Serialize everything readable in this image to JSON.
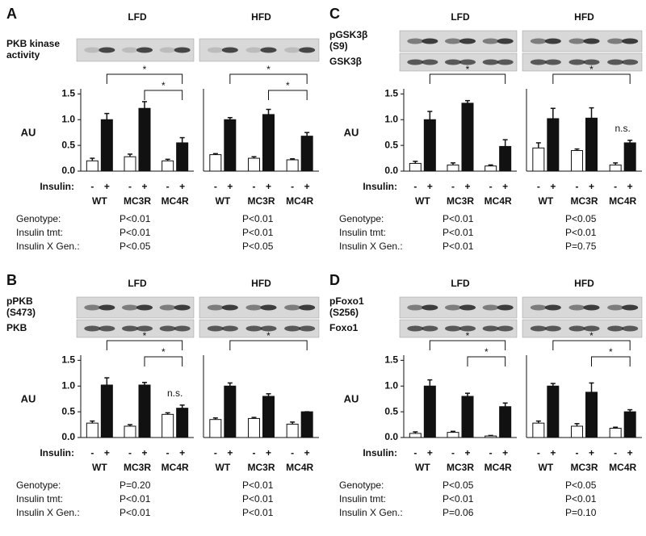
{
  "panels": [
    {
      "letter": "A",
      "ylabel": "AU",
      "insulin_label": "Insulin:",
      "stat_labels": [
        "Genotype:",
        "Insulin tmt:",
        "Insulin X Gen.:"
      ],
      "blots": [
        [
          "PKB kinase",
          "activity"
        ]
      ]
    },
    {
      "letter": "B",
      "ylabel": "AU",
      "insulin_label": "Insulin:",
      "stat_labels": [
        "Genotype:",
        "Insulin tmt:",
        "Insulin X Gen.:"
      ],
      "blots": [
        [
          "pPKB",
          "(S473)"
        ],
        [
          "PKB"
        ]
      ]
    },
    {
      "letter": "C",
      "ylabel": "AU",
      "insulin_label": "Insulin:",
      "stat_labels": [
        "Genotype:",
        "Insulin tmt:",
        "Insulin X Gen.:"
      ],
      "blots": [
        [
          "pGSK3β",
          "(S9)"
        ],
        [
          "GSK3β"
        ]
      ]
    },
    {
      "letter": "D",
      "ylabel": "AU",
      "insulin_label": "Insulin:",
      "stat_labels": [
        "Genotype:",
        "Insulin tmt:",
        "Insulin X Gen.:"
      ],
      "blots": [
        [
          "pFoxo1",
          "(S256)"
        ],
        [
          "Foxo1"
        ]
      ]
    }
  ],
  "chart_data": [
    {
      "type": "bar",
      "title": "LFD",
      "categories": [
        "WT",
        "MC3R",
        "MC4R"
      ],
      "series": [
        {
          "name": "-",
          "color": "#ffffff",
          "values": [
            0.2,
            0.28,
            0.2
          ],
          "errors": [
            0.05,
            0.05,
            0.03
          ]
        },
        {
          "name": "+",
          "color": "#111111",
          "values": [
            1.0,
            1.22,
            0.55
          ],
          "errors": [
            0.12,
            0.13,
            0.1
          ]
        }
      ],
      "ylim": [
        0,
        1.6
      ],
      "yticks": [
        {
          "value": 0,
          "label": "0.0"
        },
        {
          "value": 0.5,
          "label": "0.5"
        },
        {
          "value": 1,
          "label": "1.0"
        },
        {
          "value": 1.5,
          "label": "1.5"
        }
      ],
      "brackets": [
        {
          "label": "*",
          "span": [
            "WT",
            "MC4R"
          ]
        },
        {
          "label": "*",
          "span": [
            "MC3R",
            "MC4R"
          ]
        }
      ],
      "stats": [
        "P<0.01",
        "P<0.01",
        "P<0.05"
      ]
    },
    {
      "type": "bar",
      "title": "HFD",
      "categories": [
        "WT",
        "MC3R",
        "MC4R"
      ],
      "series": [
        {
          "name": "-",
          "color": "#ffffff",
          "values": [
            0.32,
            0.25,
            0.22
          ],
          "errors": [
            0.02,
            0.03,
            0.02
          ]
        },
        {
          "name": "+",
          "color": "#111111",
          "values": [
            1.0,
            1.1,
            0.68
          ],
          "errors": [
            0.04,
            0.1,
            0.07
          ]
        }
      ],
      "ylim": [
        0,
        1.6
      ],
      "brackets": [
        {
          "label": "*",
          "span": [
            "WT",
            "MC4R"
          ]
        },
        {
          "label": "*",
          "span": [
            "MC3R",
            "MC4R"
          ]
        }
      ],
      "stats": [
        "P<0.01",
        "P<0.01",
        "P<0.05"
      ]
    },
    {
      "type": "bar",
      "title": "LFD",
      "categories": [
        "WT",
        "MC3R",
        "MC4R"
      ],
      "series": [
        {
          "name": "-",
          "color": "#ffffff",
          "values": [
            0.28,
            0.22,
            0.45
          ],
          "errors": [
            0.04,
            0.03,
            0.03
          ]
        },
        {
          "name": "+",
          "color": "#111111",
          "values": [
            1.02,
            1.02,
            0.57
          ],
          "errors": [
            0.14,
            0.05,
            0.06
          ]
        }
      ],
      "ylim": [
        0,
        1.6
      ],
      "yticks": [
        {
          "value": 0,
          "label": "0.0"
        },
        {
          "value": 0.5,
          "label": "0.5"
        },
        {
          "value": 1,
          "label": "1.0"
        },
        {
          "value": 1.5,
          "label": "1.5"
        }
      ],
      "brackets": [
        {
          "label": "*",
          "span": [
            "WT",
            "MC4R"
          ]
        },
        {
          "label": "*",
          "span": [
            "MC3R",
            "MC4R"
          ]
        },
        {
          "label": "n.s.",
          "over": "MC4R"
        }
      ],
      "stats": [
        "P=0.20",
        "P<0.01",
        "P<0.01"
      ]
    },
    {
      "type": "bar",
      "title": "HFD",
      "categories": [
        "WT",
        "MC3R",
        "MC4R"
      ],
      "series": [
        {
          "name": "-",
          "color": "#ffffff",
          "values": [
            0.35,
            0.37,
            0.26
          ],
          "errors": [
            0.03,
            0.02,
            0.04
          ]
        },
        {
          "name": "+",
          "color": "#111111",
          "values": [
            1.0,
            0.8,
            0.5
          ],
          "errors": [
            0.06,
            0.05,
            0.0
          ]
        }
      ],
      "ylim": [
        0,
        1.6
      ],
      "brackets": [
        {
          "label": "*",
          "span": [
            "WT",
            "MC4R"
          ]
        }
      ],
      "stats": [
        "P<0.01",
        "P<0.01",
        "P<0.01"
      ]
    },
    {
      "type": "bar",
      "title": "LFD",
      "categories": [
        "WT",
        "MC3R",
        "MC4R"
      ],
      "series": [
        {
          "name": "-",
          "color": "#ffffff",
          "values": [
            0.15,
            0.12,
            0.1
          ],
          "errors": [
            0.04,
            0.04,
            0.02
          ]
        },
        {
          "name": "+",
          "color": "#111111",
          "values": [
            1.0,
            1.32,
            0.48
          ],
          "errors": [
            0.16,
            0.05,
            0.13
          ]
        }
      ],
      "ylim": [
        0,
        1.6
      ],
      "yticks": [
        {
          "value": 0,
          "label": "0.0"
        },
        {
          "value": 0.5,
          "label": "0.5"
        },
        {
          "value": 1,
          "label": "1.0"
        },
        {
          "value": 1.5,
          "label": "1.5"
        }
      ],
      "brackets": [
        {
          "label": "*",
          "span": [
            "WT",
            "MC4R"
          ]
        }
      ],
      "stats": [
        "P<0.01",
        "P<0.01",
        "P<0.01"
      ]
    },
    {
      "type": "bar",
      "title": "HFD",
      "categories": [
        "WT",
        "MC3R",
        "MC4R"
      ],
      "series": [
        {
          "name": "-",
          "color": "#ffffff",
          "values": [
            0.45,
            0.4,
            0.12
          ],
          "errors": [
            0.1,
            0.03,
            0.04
          ]
        },
        {
          "name": "+",
          "color": "#111111",
          "values": [
            1.02,
            1.03,
            0.55
          ],
          "errors": [
            0.2,
            0.2,
            0.05
          ]
        }
      ],
      "ylim": [
        0,
        1.6
      ],
      "brackets": [
        {
          "label": "*",
          "span": [
            "WT",
            "MC4R"
          ]
        },
        {
          "label": "n.s.",
          "over": "MC4R"
        }
      ],
      "stats": [
        "P<0.05",
        "P<0.01",
        "P=0.75"
      ]
    },
    {
      "type": "bar",
      "title": "LFD",
      "categories": [
        "WT",
        "MC3R",
        "MC4R"
      ],
      "series": [
        {
          "name": "-",
          "color": "#ffffff",
          "values": [
            0.08,
            0.1,
            0.03
          ],
          "errors": [
            0.03,
            0.02,
            0.01
          ]
        },
        {
          "name": "+",
          "color": "#111111",
          "values": [
            1.0,
            0.8,
            0.6
          ],
          "errors": [
            0.12,
            0.06,
            0.07
          ]
        }
      ],
      "ylim": [
        0,
        1.6
      ],
      "yticks": [
        {
          "value": 0,
          "label": "0.0"
        },
        {
          "value": 0.5,
          "label": "0.5"
        },
        {
          "value": 1,
          "label": "1.0"
        },
        {
          "value": 1.5,
          "label": "1.5"
        }
      ],
      "brackets": [
        {
          "label": "*",
          "span": [
            "WT",
            "MC4R"
          ]
        },
        {
          "label": "*",
          "span": [
            "MC3R",
            "MC4R"
          ]
        }
      ],
      "stats": [
        "P<0.05",
        "P<0.01",
        "P=0.06"
      ]
    },
    {
      "type": "bar",
      "title": "HFD",
      "categories": [
        "WT",
        "MC3R",
        "MC4R"
      ],
      "series": [
        {
          "name": "-",
          "color": "#ffffff",
          "values": [
            0.28,
            0.22,
            0.18
          ],
          "errors": [
            0.04,
            0.05,
            0.02
          ]
        },
        {
          "name": "+",
          "color": "#111111",
          "values": [
            1.0,
            0.88,
            0.5
          ],
          "errors": [
            0.05,
            0.18,
            0.04
          ]
        }
      ],
      "ylim": [
        0,
        1.6
      ],
      "brackets": [
        {
          "label": "*",
          "span": [
            "WT",
            "MC4R"
          ]
        },
        {
          "label": "*",
          "span": [
            "MC3R",
            "MC4R"
          ]
        }
      ],
      "stats": [
        "P<0.05",
        "P<0.01",
        "P=0.10"
      ]
    }
  ]
}
